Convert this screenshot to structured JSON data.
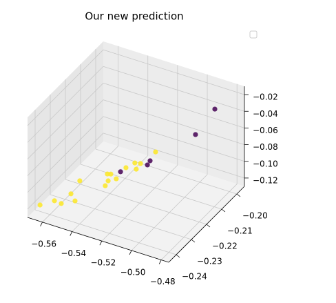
{
  "chart_data": {
    "type": "scatter3d",
    "title": "Our new prediction",
    "x": [
      -0.4887,
      -0.4958,
      -0.5381,
      -0.5286,
      -0.5304,
      -0.5674,
      -0.5622,
      -0.5573,
      -0.5516,
      -0.5573,
      -0.5594,
      -0.5439,
      -0.5449,
      -0.5488,
      -0.547,
      -0.5418,
      -0.5425,
      -0.5404,
      -0.5372,
      -0.5365,
      -0.5303
    ],
    "y": [
      -0.2011,
      -0.2069,
      -0.2149,
      -0.2047,
      -0.2047,
      -0.2393,
      -0.2349,
      -0.2352,
      -0.2317,
      -0.2288,
      -0.2209,
      -0.2193,
      -0.2164,
      -0.2131,
      -0.2126,
      -0.2141,
      -0.207,
      -0.2032,
      -0.2026,
      -0.2061,
      -0.1994
    ],
    "z": [
      -0.034,
      -0.058,
      -0.112,
      -0.112,
      -0.118,
      -0.124,
      -0.124,
      -0.124,
      -0.124,
      -0.124,
      -0.124,
      -0.124,
      -0.124,
      -0.124,
      -0.124,
      -0.124,
      -0.124,
      -0.124,
      -0.124,
      -0.124,
      -0.112
    ],
    "colors": [
      "#440154",
      "#440154",
      "#440154",
      "#440154",
      "#440154",
      "#fde725",
      "#fde725",
      "#fde725",
      "#fde725",
      "#fde725",
      "#fde725",
      "#fde725",
      "#fde725",
      "#fde725",
      "#fde725",
      "#fde725",
      "#fde725",
      "#fde725",
      "#fde725",
      "#fde725",
      "#fde725"
    ],
    "xlim": [
      -0.57,
      -0.475
    ],
    "ylim": [
      -0.245,
      -0.195
    ],
    "zlim": [
      -0.13,
      -0.01
    ],
    "xticks": [
      {
        "value": -0.56,
        "label": "−0.56"
      },
      {
        "value": -0.54,
        "label": "−0.54"
      },
      {
        "value": -0.52,
        "label": "−0.52"
      },
      {
        "value": -0.5,
        "label": "−0.50"
      },
      {
        "value": -0.48,
        "label": "−0.48"
      }
    ],
    "yticks": [
      {
        "value": -0.24,
        "label": "−0.24"
      },
      {
        "value": -0.23,
        "label": "−0.23"
      },
      {
        "value": -0.22,
        "label": "−0.22"
      },
      {
        "value": -0.21,
        "label": "−0.21"
      },
      {
        "value": -0.2,
        "label": "−0.20"
      }
    ],
    "zticks": [
      {
        "value": -0.12,
        "label": "−0.12"
      },
      {
        "value": -0.1,
        "label": "−0.10"
      },
      {
        "value": -0.08,
        "label": "−0.08"
      },
      {
        "value": -0.06,
        "label": "−0.06"
      },
      {
        "value": -0.04,
        "label": "−0.04"
      },
      {
        "value": -0.02,
        "label": "−0.02"
      }
    ],
    "grid": true
  }
}
